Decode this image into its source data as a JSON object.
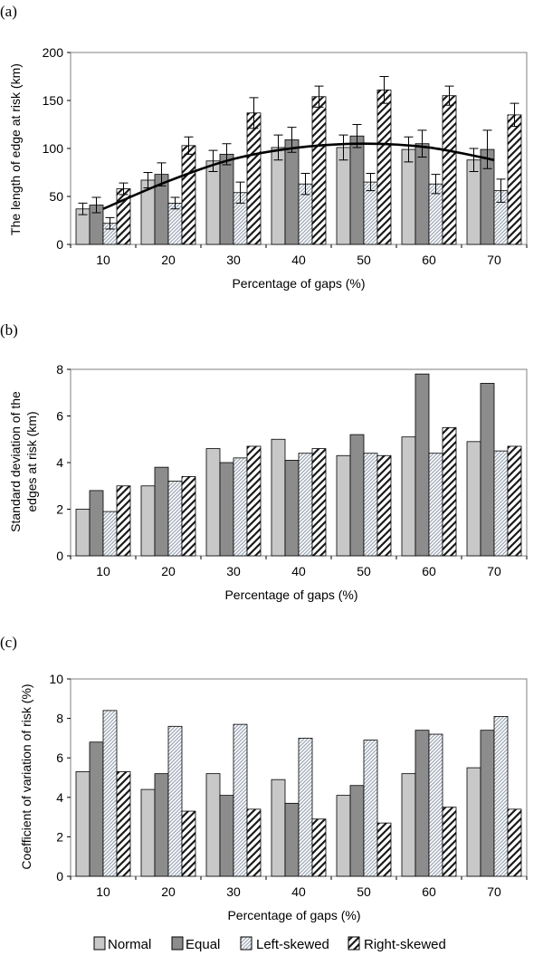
{
  "figure": {
    "legend": [
      "Normal",
      "Equal",
      "Left-skewed",
      "Right-skewed"
    ]
  },
  "chart_data": [
    {
      "type": "bar",
      "panel": "(a)",
      "title": "",
      "xlabel": "Percentage of gaps (%)",
      "ylabel": "The length of edge at risk (km)",
      "ylim": [
        0,
        200
      ],
      "yticks": [
        0,
        50,
        100,
        150,
        200
      ],
      "categories": [
        "10",
        "20",
        "30",
        "40",
        "50",
        "60",
        "70"
      ],
      "series": [
        {
          "name": "Normal",
          "values": [
            37,
            67,
            87,
            101,
            101,
            99,
            88
          ],
          "errors": [
            6,
            8,
            11,
            13,
            13,
            13,
            12
          ]
        },
        {
          "name": "Equal",
          "values": [
            41,
            73,
            94,
            109,
            113,
            105,
            99
          ],
          "errors": [
            8,
            12,
            11,
            13,
            12,
            14,
            20
          ]
        },
        {
          "name": "Left-skewed",
          "values": [
            22,
            43,
            54,
            63,
            65,
            63,
            56
          ],
          "errors": [
            6,
            6,
            11,
            11,
            9,
            10,
            12
          ]
        },
        {
          "name": "Right-skewed",
          "values": [
            58,
            103,
            137,
            154,
            161,
            155,
            135
          ],
          "errors": [
            6,
            9,
            16,
            11,
            14,
            10,
            12
          ]
        }
      ],
      "trend_line": [
        {
          "x": "10",
          "y": 37
        },
        {
          "x": "20",
          "y": 66
        },
        {
          "x": "30",
          "y": 89
        },
        {
          "x": "40",
          "y": 101
        },
        {
          "x": "50",
          "y": 105
        },
        {
          "x": "60",
          "y": 101
        },
        {
          "x": "70",
          "y": 88
        }
      ],
      "grid": false
    },
    {
      "type": "bar",
      "panel": "(b)",
      "title": "",
      "xlabel": "Percentage of gaps (%)",
      "ylabel": [
        "Standard deviation of the",
        "edges at risk (km)"
      ],
      "ylim": [
        0,
        8
      ],
      "yticks": [
        0,
        2,
        4,
        6,
        8
      ],
      "categories": [
        "10",
        "20",
        "30",
        "40",
        "50",
        "60",
        "70"
      ],
      "series": [
        {
          "name": "Normal",
          "values": [
            2.0,
            3.0,
            4.6,
            5.0,
            4.3,
            5.1,
            4.9
          ]
        },
        {
          "name": "Equal",
          "values": [
            2.8,
            3.8,
            4.0,
            4.1,
            5.2,
            7.8,
            7.4
          ]
        },
        {
          "name": "Left-skewed",
          "values": [
            1.9,
            3.2,
            4.2,
            4.4,
            4.4,
            4.4,
            4.5
          ]
        },
        {
          "name": "Right-skewed",
          "values": [
            3.0,
            3.4,
            4.7,
            4.6,
            4.3,
            5.5,
            4.7
          ]
        }
      ],
      "grid": false
    },
    {
      "type": "bar",
      "panel": "(c)",
      "title": "",
      "xlabel": "Percentage of gaps (%)",
      "ylabel": "Coefficient of variation of risk (%)",
      "ylim": [
        0,
        10
      ],
      "yticks": [
        0,
        2,
        4,
        6,
        8,
        10
      ],
      "categories": [
        "10",
        "20",
        "30",
        "40",
        "50",
        "60",
        "70"
      ],
      "series": [
        {
          "name": "Normal",
          "values": [
            5.3,
            4.4,
            5.2,
            4.9,
            4.1,
            5.2,
            5.5
          ]
        },
        {
          "name": "Equal",
          "values": [
            6.8,
            5.2,
            4.1,
            3.7,
            4.6,
            7.4,
            7.4
          ]
        },
        {
          "name": "Left-skewed",
          "values": [
            8.4,
            7.6,
            7.7,
            7.0,
            6.9,
            7.2,
            8.1
          ]
        },
        {
          "name": "Right-skewed",
          "values": [
            5.3,
            3.3,
            3.4,
            2.9,
            2.7,
            3.5,
            3.4
          ]
        }
      ],
      "grid": false
    }
  ],
  "colors": {
    "normal": "#c8c8c8",
    "equal": "#8c8c8c",
    "left_skewed_fg": "#9ba6b4",
    "right_skewed_fg": "#1a1a1a",
    "outline": "#000000",
    "frame": "#808080"
  }
}
